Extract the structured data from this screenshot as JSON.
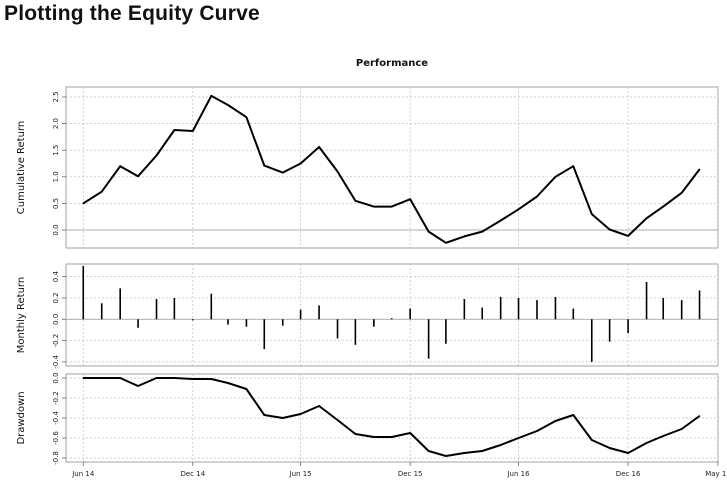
{
  "page": {
    "title": "Plotting the Equity Curve"
  },
  "chart_data": {
    "type": "line",
    "title": "Performance",
    "grid": true,
    "x": [
      "2014-06-30",
      "2014-07-31",
      "2014-08-31",
      "2014-09-30",
      "2014-10-31",
      "2014-11-30",
      "2014-12-31",
      "2015-01-31",
      "2015-02-28",
      "2015-03-31",
      "2015-04-30",
      "2015-05-31",
      "2015-06-30",
      "2015-07-31",
      "2015-08-31",
      "2015-09-30",
      "2015-10-31",
      "2015-11-30",
      "2015-12-31",
      "2016-01-31",
      "2016-02-29",
      "2016-03-31",
      "2016-04-30",
      "2016-05-31",
      "2016-06-30",
      "2016-07-31",
      "2016-08-31",
      "2016-09-30",
      "2016-10-31",
      "2016-11-30",
      "2016-12-31",
      "2017-01-31",
      "2017-02-28",
      "2017-03-31",
      "2017-04-30"
    ],
    "x_tick_labels": [
      "Jun 14",
      "Dec 14",
      "Jun 15",
      "Dec 15",
      "Jun 16",
      "Dec 16",
      "May 17"
    ],
    "x_tick_dates": [
      "2014-06-30",
      "2014-12-31",
      "2015-06-30",
      "2015-12-31",
      "2016-06-30",
      "2016-12-31",
      "2017-05-31"
    ],
    "xlim": [
      "2014-06-01",
      "2017-05-31"
    ],
    "panels": [
      {
        "name": "cumulative",
        "type": "line",
        "ylabel": "Cumulative Return",
        "ylim": [
          -0.3,
          2.65
        ],
        "ticks": [
          0.0,
          0.5,
          1.0,
          1.5,
          2.0,
          2.5
        ],
        "tick_labels": [
          "0.0",
          "0.5",
          "1.0",
          "1.5",
          "2.0",
          "2.5"
        ],
        "baseline": 0,
        "values": [
          0.5,
          0.72,
          1.2,
          1.01,
          1.4,
          1.88,
          1.86,
          2.52,
          2.35,
          2.12,
          1.21,
          1.08,
          1.25,
          1.56,
          1.1,
          0.55,
          0.44,
          0.44,
          0.58,
          -0.03,
          -0.24,
          -0.12,
          -0.03,
          0.18,
          0.39,
          0.63,
          1.0,
          1.2,
          0.3,
          0.01,
          -0.11,
          0.22,
          0.44,
          0.7,
          1.14
        ]
      },
      {
        "name": "monthly",
        "type": "bar",
        "ylabel": "Monthly Return",
        "ylim": [
          -0.42,
          0.5
        ],
        "ticks": [
          -0.4,
          -0.2,
          0.0,
          0.2,
          0.4
        ],
        "tick_labels": [
          "-0.4",
          "-0.2",
          "0.0",
          "0.2",
          "0.4"
        ],
        "baseline": 0,
        "values": [
          0.5,
          0.15,
          0.29,
          -0.08,
          0.19,
          0.2,
          -0.01,
          0.24,
          -0.05,
          -0.07,
          -0.28,
          -0.06,
          0.09,
          0.13,
          -0.18,
          -0.24,
          -0.07,
          0.01,
          0.1,
          -0.37,
          -0.23,
          0.19,
          0.11,
          0.21,
          0.2,
          0.18,
          0.21,
          0.1,
          -0.4,
          -0.21,
          -0.13,
          0.35,
          0.2,
          0.18,
          0.27
        ]
      },
      {
        "name": "drawdown",
        "type": "line",
        "ylabel": "Drawdown",
        "ylim": [
          -0.82,
          0.02
        ],
        "ticks": [
          0.0,
          -0.2,
          -0.4,
          -0.6,
          -0.8
        ],
        "tick_labels": [
          "0.0",
          "-0.2",
          "-0.4",
          "-0.6",
          "-0.8"
        ],
        "values": [
          0.0,
          0.0,
          0.0,
          -0.08,
          0.0,
          0.0,
          -0.01,
          -0.01,
          -0.05,
          -0.11,
          -0.37,
          -0.4,
          -0.36,
          -0.28,
          -0.42,
          -0.56,
          -0.59,
          -0.59,
          -0.55,
          -0.73,
          -0.78,
          -0.75,
          -0.73,
          -0.67,
          -0.6,
          -0.53,
          -0.43,
          -0.37,
          -0.62,
          -0.7,
          -0.75,
          -0.65,
          -0.58,
          -0.51,
          -0.38
        ]
      }
    ]
  }
}
